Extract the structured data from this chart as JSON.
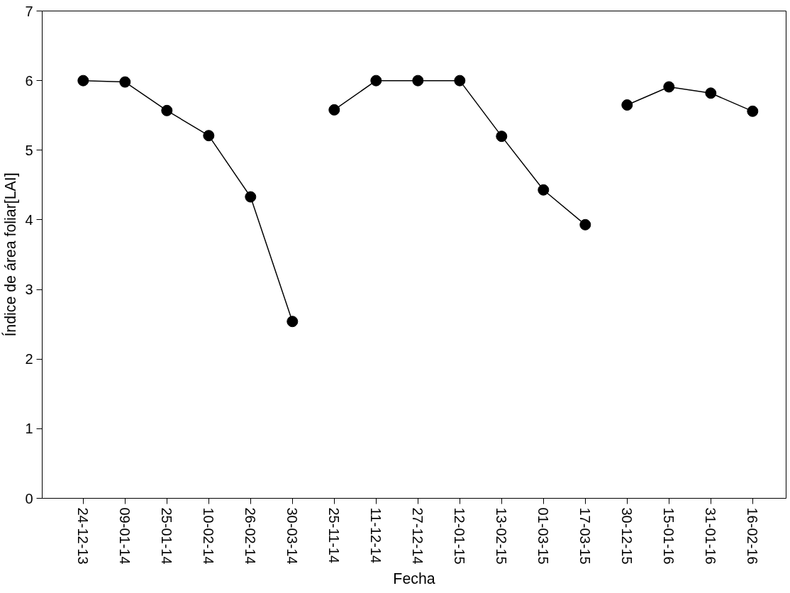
{
  "chart_data": {
    "type": "line",
    "xlabel": "Fecha",
    "ylabel": "Índice de área foliar[LAI]",
    "categories": [
      "24-12-13",
      "09-01-14",
      "25-01-14",
      "10-02-14",
      "26-02-14",
      "30-03-14",
      "25-11-14",
      "11-12-14",
      "27-12-14",
      "12-01-15",
      "13-02-15",
      "01-03-15",
      "17-03-15",
      "30-12-15",
      "15-01-16",
      "31-01-16",
      "16-02-16"
    ],
    "series": [
      {
        "color": "#000000",
        "values": [
          6.0,
          5.98,
          5.57,
          5.21,
          4.33,
          2.54,
          null,
          null,
          null,
          null,
          null,
          null,
          null,
          null,
          null,
          null,
          null
        ]
      },
      {
        "color": "#000000",
        "values": [
          null,
          null,
          null,
          null,
          null,
          null,
          5.58,
          6.0,
          6.0,
          6.0,
          5.2,
          4.43,
          3.93,
          null,
          null,
          null,
          null
        ]
      },
      {
        "color": "#000000",
        "values": [
          null,
          null,
          null,
          null,
          null,
          null,
          null,
          null,
          null,
          null,
          null,
          null,
          null,
          5.65,
          5.91,
          5.82,
          5.56
        ]
      }
    ],
    "ylim": [
      0,
      7
    ],
    "yticks": [
      0,
      1,
      2,
      3,
      4,
      5,
      6,
      7
    ],
    "grid": false,
    "marker": "circle",
    "line_style": "solid"
  }
}
